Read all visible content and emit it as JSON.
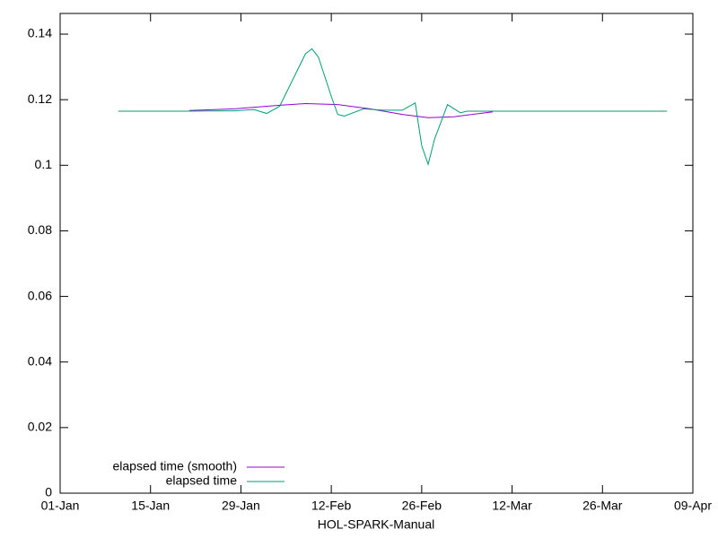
{
  "chart_data": {
    "type": "line",
    "xlabel": "HOL-SPARK-Manual",
    "xlim": [
      "01-Jan",
      "09-Apr"
    ],
    "xticks": [
      "01-Jan",
      "15-Jan",
      "29-Jan",
      "12-Feb",
      "26-Feb",
      "12-Mar",
      "26-Mar",
      "09-Apr"
    ],
    "ylim": [
      0,
      0.1463
    ],
    "yticks": [
      0,
      0.02,
      0.04,
      0.06,
      0.08,
      0.1,
      0.12,
      0.14
    ],
    "grid": false,
    "legend": "bottom-left",
    "series": [
      {
        "name": "elapsed time (smooth)",
        "color": "#9400d3",
        "x": [
          "21-Jan",
          "28-Jan",
          "04-Feb",
          "08-Feb",
          "13-Feb",
          "18-Feb",
          "23-Feb",
          "27-Feb",
          "03-Mar",
          "09-Mar"
        ],
        "values": [
          0.1167,
          0.1172,
          0.1183,
          0.1188,
          0.1185,
          0.1172,
          0.1155,
          0.1145,
          0.1148,
          0.1163
        ]
      },
      {
        "name": "elapsed time",
        "color": "#009e73",
        "x": [
          "10-Jan",
          "20-Jan",
          "28-Jan",
          "31-Jan",
          "02-Feb",
          "04-Feb",
          "06-Feb",
          "08-Feb",
          "09-Feb",
          "10-Feb",
          "12-Feb",
          "13-Feb",
          "14-Feb",
          "17-Feb",
          "20-Feb",
          "23-Feb",
          "25-Feb",
          "26-Feb",
          "27-Feb",
          "28-Feb",
          "02-Mar",
          "04-Mar",
          "05-Mar",
          "20-Mar",
          "05-Apr"
        ],
        "values": [
          0.1165,
          0.1165,
          0.1166,
          0.117,
          0.1158,
          0.118,
          0.126,
          0.134,
          0.1355,
          0.133,
          0.121,
          0.1155,
          0.115,
          0.1172,
          0.1168,
          0.1168,
          0.119,
          0.106,
          0.1003,
          0.108,
          0.1185,
          0.116,
          0.1165,
          0.1165,
          0.1165
        ]
      }
    ]
  }
}
